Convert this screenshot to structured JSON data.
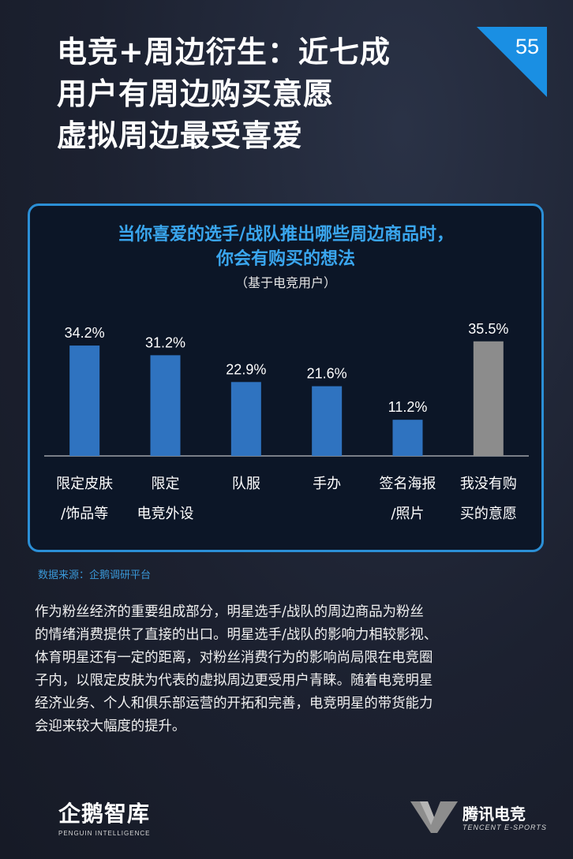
{
  "header": {
    "title_lines": [
      "电竞+周边衍生：近七成",
      "用户有周边购买意愿",
      "虚拟周边最受喜爱"
    ],
    "page_number": "55"
  },
  "chart_data": {
    "type": "bar",
    "title_lines": [
      "当你喜爱的选手/战队推出哪些周边商品时，",
      "你会有购买的想法"
    ],
    "subtitle": "（基于电竞用户）",
    "categories": [
      [
        "限定皮肤",
        "/饰品等"
      ],
      [
        "限定",
        "电竞外设"
      ],
      [
        "队服"
      ],
      [
        "手办"
      ],
      [
        "签名海报",
        "/照片"
      ],
      [
        "我没有购",
        "买的意愿"
      ]
    ],
    "values": [
      34.2,
      31.2,
      22.9,
      21.6,
      11.2,
      35.5
    ],
    "value_labels": [
      "34.2%",
      "31.2%",
      "22.9%",
      "21.6%",
      "11.2%",
      "35.5%"
    ],
    "bar_colors": [
      "#2f73c0",
      "#2f73c0",
      "#2f73c0",
      "#2f73c0",
      "#2f73c0",
      "#8c8c8c"
    ],
    "ylim": [
      0,
      40
    ],
    "grid": false
  },
  "source": "数据来源：企鹅调研平台",
  "body_lines": [
    "作为粉丝经济的重要组成部分，明星选手/战队的周边商品为粉丝",
    "的情绪消费提供了直接的出口。明星选手/战队的影响力相较影视、",
    "体育明星还有一定的距离，对粉丝消费行为的影响尚局限在电竞圈",
    "子内，以限定皮肤为代表的虚拟周边更受用户青睐。随着电竞明星",
    "经济业务、个人和俱乐部运营的开拓和完善，电竞明星的带货能力",
    "会迎来较大幅度的提升。"
  ],
  "footer": {
    "left_logo": {
      "brand": "企鹅智库",
      "sub": "PENGUIN INTELLIGENCE"
    },
    "right_logo": {
      "brand": "腾讯电竞",
      "sub": "TENCENT E-SPORTS"
    }
  },
  "colors": {
    "background": "#1c2130",
    "accent": "#2b8fd6",
    "bar": "#2f73c0",
    "bar_muted": "#8c8c8c"
  }
}
